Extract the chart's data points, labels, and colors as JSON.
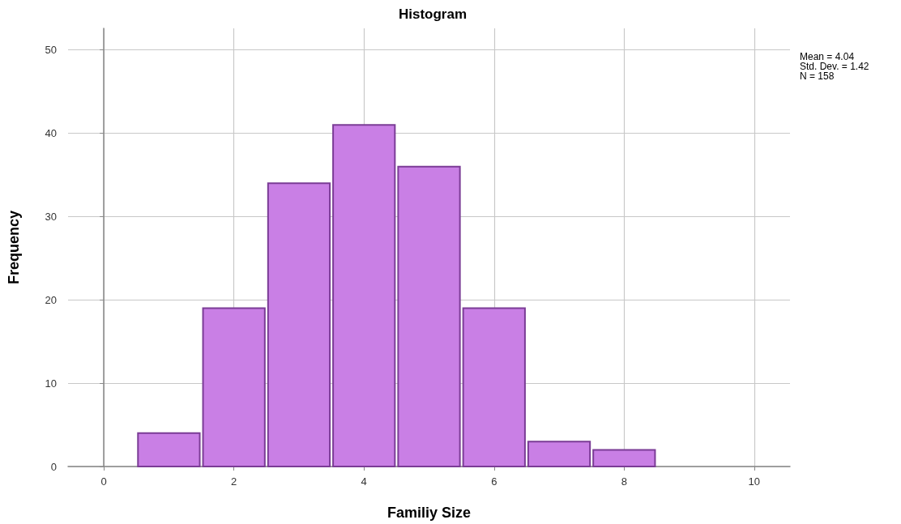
{
  "chart_data": {
    "type": "histogram",
    "title": "Histogram",
    "xlabel": "Familiy Size",
    "ylabel": "Frequency",
    "bins": [
      0.5,
      1.5,
      2.5,
      3.5,
      4.5,
      5.5,
      6.5,
      7.5,
      8.5
    ],
    "values": [
      4,
      19,
      34,
      41,
      36,
      19,
      3,
      2
    ],
    "color": "#c97fe5",
    "xlim": [
      -0.55,
      10.55
    ],
    "xticks": [
      0,
      2,
      4,
      6,
      8,
      10
    ],
    "ylim": [
      0,
      52.6
    ],
    "yticks": [
      0,
      10,
      20,
      30,
      40,
      50
    ],
    "grid": true,
    "annotations": [
      "Mean = 4.04",
      "Std. Dev. = 1.42",
      "N = 158"
    ]
  }
}
